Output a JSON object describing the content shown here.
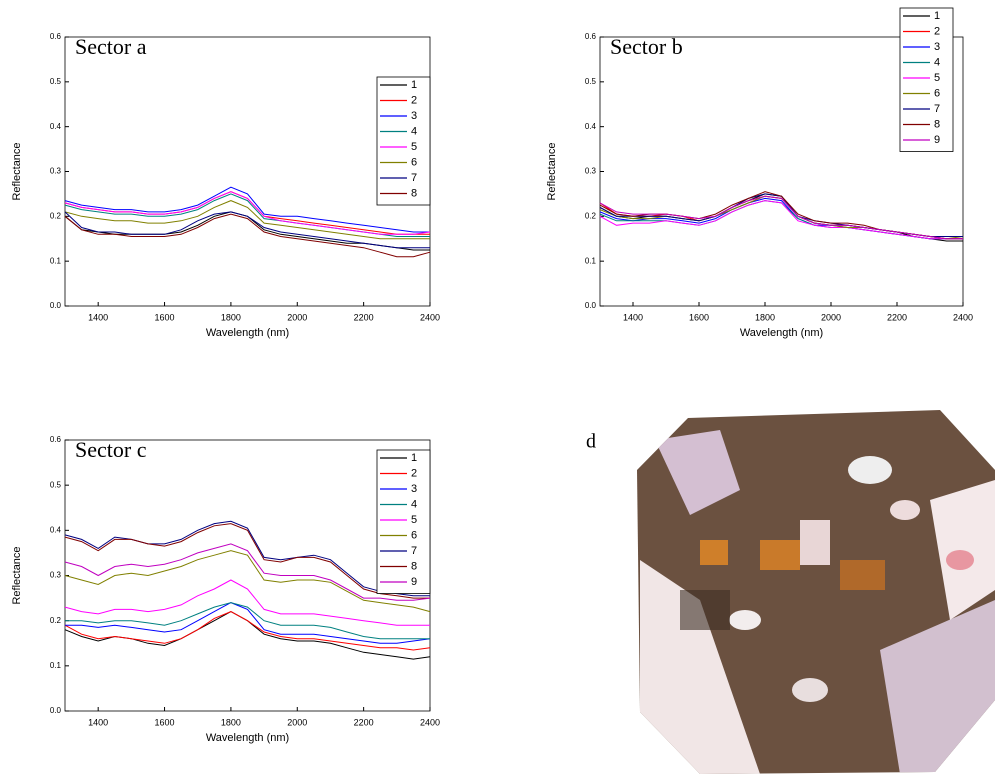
{
  "chart_data": [
    {
      "type": "line",
      "title": "Sector a",
      "x_label": "Wavelength (nm)",
      "y_label": "Reflectance",
      "x": [
        1300,
        1350,
        1400,
        1450,
        1500,
        1550,
        1600,
        1650,
        1700,
        1750,
        1800,
        1850,
        1900,
        1950,
        2000,
        2050,
        2100,
        2150,
        2200,
        2250,
        2300,
        2350,
        2400
      ],
      "xlim": [
        1300,
        2400
      ],
      "xticks": [
        1400,
        1600,
        1800,
        2000,
        2200,
        2400
      ],
      "ylim": [
        0,
        0.6
      ],
      "yticks": [
        {
          "value": 0,
          "label": "0.0"
        },
        0.1,
        0.2,
        0.3,
        0.4,
        0.5,
        0.6
      ],
      "series": [
        {
          "name": "1",
          "color": "#000000",
          "values": [
            0.2,
            0.17,
            0.165,
            0.16,
            0.16,
            0.16,
            0.16,
            0.165,
            0.18,
            0.2,
            0.21,
            0.2,
            0.17,
            0.16,
            0.155,
            0.15,
            0.145,
            0.14,
            0.14,
            0.135,
            0.13,
            0.125,
            0.125
          ]
        },
        {
          "name": "2",
          "color": "#ff0000",
          "values": [
            0.23,
            0.22,
            0.215,
            0.21,
            0.21,
            0.205,
            0.205,
            0.21,
            0.22,
            0.24,
            0.255,
            0.24,
            0.2,
            0.195,
            0.19,
            0.185,
            0.18,
            0.175,
            0.17,
            0.165,
            0.16,
            0.16,
            0.16
          ]
        },
        {
          "name": "3",
          "color": "#0000ff",
          "values": [
            0.235,
            0.225,
            0.22,
            0.215,
            0.215,
            0.21,
            0.21,
            0.215,
            0.225,
            0.245,
            0.265,
            0.25,
            0.205,
            0.2,
            0.2,
            0.195,
            0.19,
            0.185,
            0.18,
            0.175,
            0.17,
            0.165,
            0.165
          ]
        },
        {
          "name": "4",
          "color": "#008080",
          "values": [
            0.225,
            0.215,
            0.21,
            0.205,
            0.205,
            0.2,
            0.2,
            0.205,
            0.215,
            0.235,
            0.25,
            0.235,
            0.195,
            0.19,
            0.185,
            0.18,
            0.175,
            0.17,
            0.165,
            0.16,
            0.155,
            0.155,
            0.155
          ]
        },
        {
          "name": "5",
          "color": "#ff00ff",
          "values": [
            0.23,
            0.22,
            0.215,
            0.21,
            0.21,
            0.205,
            0.205,
            0.21,
            0.22,
            0.24,
            0.255,
            0.24,
            0.2,
            0.19,
            0.185,
            0.18,
            0.175,
            0.17,
            0.165,
            0.16,
            0.16,
            0.16,
            0.165
          ]
        },
        {
          "name": "6",
          "color": "#808000",
          "values": [
            0.21,
            0.2,
            0.195,
            0.19,
            0.19,
            0.185,
            0.185,
            0.19,
            0.2,
            0.22,
            0.235,
            0.22,
            0.185,
            0.18,
            0.175,
            0.17,
            0.165,
            0.16,
            0.155,
            0.15,
            0.15,
            0.15,
            0.15
          ]
        },
        {
          "name": "7",
          "color": "#000080",
          "values": [
            0.21,
            0.175,
            0.165,
            0.165,
            0.16,
            0.16,
            0.16,
            0.17,
            0.19,
            0.205,
            0.21,
            0.2,
            0.175,
            0.165,
            0.16,
            0.155,
            0.15,
            0.145,
            0.14,
            0.135,
            0.13,
            0.13,
            0.13
          ]
        },
        {
          "name": "8",
          "color": "#800000",
          "values": [
            0.2,
            0.17,
            0.16,
            0.16,
            0.155,
            0.155,
            0.155,
            0.16,
            0.175,
            0.195,
            0.205,
            0.195,
            0.165,
            0.155,
            0.15,
            0.145,
            0.14,
            0.135,
            0.13,
            0.12,
            0.11,
            0.11,
            0.12
          ]
        }
      ]
    },
    {
      "type": "line",
      "title": "Sector b",
      "x_label": "Wavelength (nm)",
      "y_label": "Reflectance",
      "x": [
        1300,
        1350,
        1400,
        1450,
        1500,
        1550,
        1600,
        1650,
        1700,
        1750,
        1800,
        1850,
        1900,
        1950,
        2000,
        2050,
        2100,
        2150,
        2200,
        2250,
        2300,
        2350,
        2400
      ],
      "xlim": [
        1300,
        2400
      ],
      "xticks": [
        1400,
        1600,
        1800,
        2000,
        2200,
        2400
      ],
      "ylim": [
        0,
        0.6
      ],
      "yticks": [
        {
          "value": 0,
          "label": "0.0"
        },
        0.1,
        0.2,
        0.3,
        0.4,
        0.5,
        0.6
      ],
      "series": [
        {
          "name": "1",
          "color": "#000000",
          "values": [
            0.22,
            0.2,
            0.195,
            0.2,
            0.2,
            0.195,
            0.19,
            0.2,
            0.22,
            0.235,
            0.25,
            0.245,
            0.2,
            0.185,
            0.18,
            0.18,
            0.175,
            0.17,
            0.165,
            0.155,
            0.15,
            0.145,
            0.145
          ]
        },
        {
          "name": "2",
          "color": "#ff0000",
          "values": [
            0.23,
            0.205,
            0.2,
            0.2,
            0.205,
            0.2,
            0.19,
            0.2,
            0.22,
            0.235,
            0.245,
            0.24,
            0.2,
            0.185,
            0.18,
            0.18,
            0.175,
            0.17,
            0.165,
            0.16,
            0.155,
            0.15,
            0.15
          ]
        },
        {
          "name": "3",
          "color": "#0000ff",
          "values": [
            0.21,
            0.195,
            0.19,
            0.195,
            0.195,
            0.19,
            0.185,
            0.195,
            0.215,
            0.23,
            0.24,
            0.235,
            0.195,
            0.18,
            0.18,
            0.175,
            0.17,
            0.165,
            0.16,
            0.155,
            0.15,
            0.15,
            0.15
          ]
        },
        {
          "name": "4",
          "color": "#008080",
          "values": [
            0.205,
            0.19,
            0.19,
            0.19,
            0.19,
            0.185,
            0.18,
            0.19,
            0.21,
            0.225,
            0.235,
            0.23,
            0.195,
            0.18,
            0.175,
            0.175,
            0.17,
            0.165,
            0.16,
            0.155,
            0.15,
            0.15,
            0.15
          ]
        },
        {
          "name": "5",
          "color": "#ff00ff",
          "values": [
            0.2,
            0.18,
            0.185,
            0.185,
            0.19,
            0.185,
            0.18,
            0.19,
            0.21,
            0.225,
            0.235,
            0.23,
            0.19,
            0.18,
            0.175,
            0.175,
            0.17,
            0.165,
            0.16,
            0.155,
            0.15,
            0.15,
            0.15
          ]
        },
        {
          "name": "6",
          "color": "#808000",
          "values": [
            0.215,
            0.2,
            0.195,
            0.195,
            0.2,
            0.195,
            0.19,
            0.2,
            0.215,
            0.23,
            0.245,
            0.24,
            0.2,
            0.185,
            0.18,
            0.175,
            0.175,
            0.17,
            0.165,
            0.16,
            0.155,
            0.15,
            0.155
          ]
        },
        {
          "name": "7",
          "color": "#000080",
          "values": [
            0.22,
            0.2,
            0.2,
            0.2,
            0.2,
            0.195,
            0.19,
            0.2,
            0.22,
            0.24,
            0.25,
            0.245,
            0.2,
            0.19,
            0.185,
            0.18,
            0.175,
            0.17,
            0.165,
            0.16,
            0.155,
            0.155,
            0.155
          ]
        },
        {
          "name": "8",
          "color": "#800000",
          "values": [
            0.225,
            0.205,
            0.2,
            0.205,
            0.205,
            0.2,
            0.195,
            0.205,
            0.225,
            0.24,
            0.255,
            0.245,
            0.205,
            0.19,
            0.185,
            0.185,
            0.18,
            0.17,
            0.165,
            0.16,
            0.155,
            0.15,
            0.15
          ]
        },
        {
          "name": "9",
          "color": "#c000c0",
          "values": [
            0.23,
            0.21,
            0.205,
            0.205,
            0.205,
            0.2,
            0.195,
            0.2,
            0.22,
            0.235,
            0.245,
            0.24,
            0.2,
            0.185,
            0.18,
            0.18,
            0.175,
            0.17,
            0.165,
            0.16,
            0.155,
            0.15,
            0.15
          ]
        }
      ]
    },
    {
      "type": "line",
      "title": "Sector c",
      "x_label": "Wavelength (nm)",
      "y_label": "Reflectance",
      "x": [
        1300,
        1350,
        1400,
        1450,
        1500,
        1550,
        1600,
        1650,
        1700,
        1750,
        1800,
        1850,
        1900,
        1950,
        2000,
        2050,
        2100,
        2150,
        2200,
        2250,
        2300,
        2350,
        2400
      ],
      "xlim": [
        1300,
        2400
      ],
      "xticks": [
        1400,
        1600,
        1800,
        2000,
        2200,
        2400
      ],
      "ylim": [
        0,
        0.6
      ],
      "yticks": [
        {
          "value": 0,
          "label": "0.0"
        },
        0.1,
        0.2,
        0.3,
        0.4,
        0.5,
        0.6
      ],
      "series": [
        {
          "name": "1",
          "color": "#000000",
          "values": [
            0.18,
            0.165,
            0.155,
            0.165,
            0.16,
            0.15,
            0.145,
            0.16,
            0.18,
            0.2,
            0.22,
            0.2,
            0.17,
            0.16,
            0.155,
            0.155,
            0.15,
            0.14,
            0.13,
            0.125,
            0.12,
            0.115,
            0.12
          ]
        },
        {
          "name": "2",
          "color": "#ff0000",
          "values": [
            0.19,
            0.17,
            0.16,
            0.165,
            0.16,
            0.155,
            0.15,
            0.16,
            0.18,
            0.205,
            0.22,
            0.2,
            0.175,
            0.165,
            0.16,
            0.16,
            0.155,
            0.15,
            0.145,
            0.14,
            0.14,
            0.135,
            0.14
          ]
        },
        {
          "name": "3",
          "color": "#0000ff",
          "values": [
            0.19,
            0.19,
            0.185,
            0.19,
            0.185,
            0.18,
            0.175,
            0.18,
            0.2,
            0.22,
            0.24,
            0.225,
            0.18,
            0.17,
            0.17,
            0.17,
            0.165,
            0.16,
            0.155,
            0.15,
            0.15,
            0.155,
            0.16
          ]
        },
        {
          "name": "4",
          "color": "#008080",
          "values": [
            0.2,
            0.2,
            0.195,
            0.2,
            0.2,
            0.195,
            0.19,
            0.2,
            0.215,
            0.23,
            0.24,
            0.23,
            0.2,
            0.19,
            0.19,
            0.19,
            0.185,
            0.175,
            0.165,
            0.16,
            0.16,
            0.16,
            0.16
          ]
        },
        {
          "name": "5",
          "color": "#ff00ff",
          "values": [
            0.23,
            0.22,
            0.215,
            0.225,
            0.225,
            0.22,
            0.225,
            0.235,
            0.255,
            0.27,
            0.29,
            0.27,
            0.225,
            0.215,
            0.215,
            0.215,
            0.21,
            0.205,
            0.2,
            0.195,
            0.19,
            0.19,
            0.19
          ]
        },
        {
          "name": "6",
          "color": "#808000",
          "values": [
            0.3,
            0.29,
            0.28,
            0.3,
            0.305,
            0.3,
            0.31,
            0.32,
            0.335,
            0.345,
            0.355,
            0.345,
            0.29,
            0.285,
            0.29,
            0.29,
            0.285,
            0.265,
            0.245,
            0.24,
            0.235,
            0.23,
            0.22
          ]
        },
        {
          "name": "7",
          "color": "#000080",
          "values": [
            0.39,
            0.38,
            0.36,
            0.385,
            0.38,
            0.37,
            0.37,
            0.38,
            0.4,
            0.415,
            0.42,
            0.405,
            0.34,
            0.335,
            0.34,
            0.345,
            0.335,
            0.305,
            0.275,
            0.265,
            0.26,
            0.255,
            0.255
          ]
        },
        {
          "name": "8",
          "color": "#800000",
          "values": [
            0.385,
            0.375,
            0.355,
            0.38,
            0.38,
            0.37,
            0.365,
            0.375,
            0.395,
            0.41,
            0.415,
            0.4,
            0.335,
            0.33,
            0.34,
            0.34,
            0.33,
            0.3,
            0.27,
            0.26,
            0.255,
            0.25,
            0.25
          ]
        },
        {
          "name": "9",
          "color": "#c000c0",
          "values": [
            0.33,
            0.32,
            0.3,
            0.32,
            0.325,
            0.32,
            0.325,
            0.335,
            0.35,
            0.36,
            0.37,
            0.355,
            0.305,
            0.3,
            0.3,
            0.3,
            0.29,
            0.27,
            0.25,
            0.25,
            0.245,
            0.245,
            0.25
          ]
        }
      ]
    }
  ],
  "panel_d": {
    "label": "d"
  }
}
